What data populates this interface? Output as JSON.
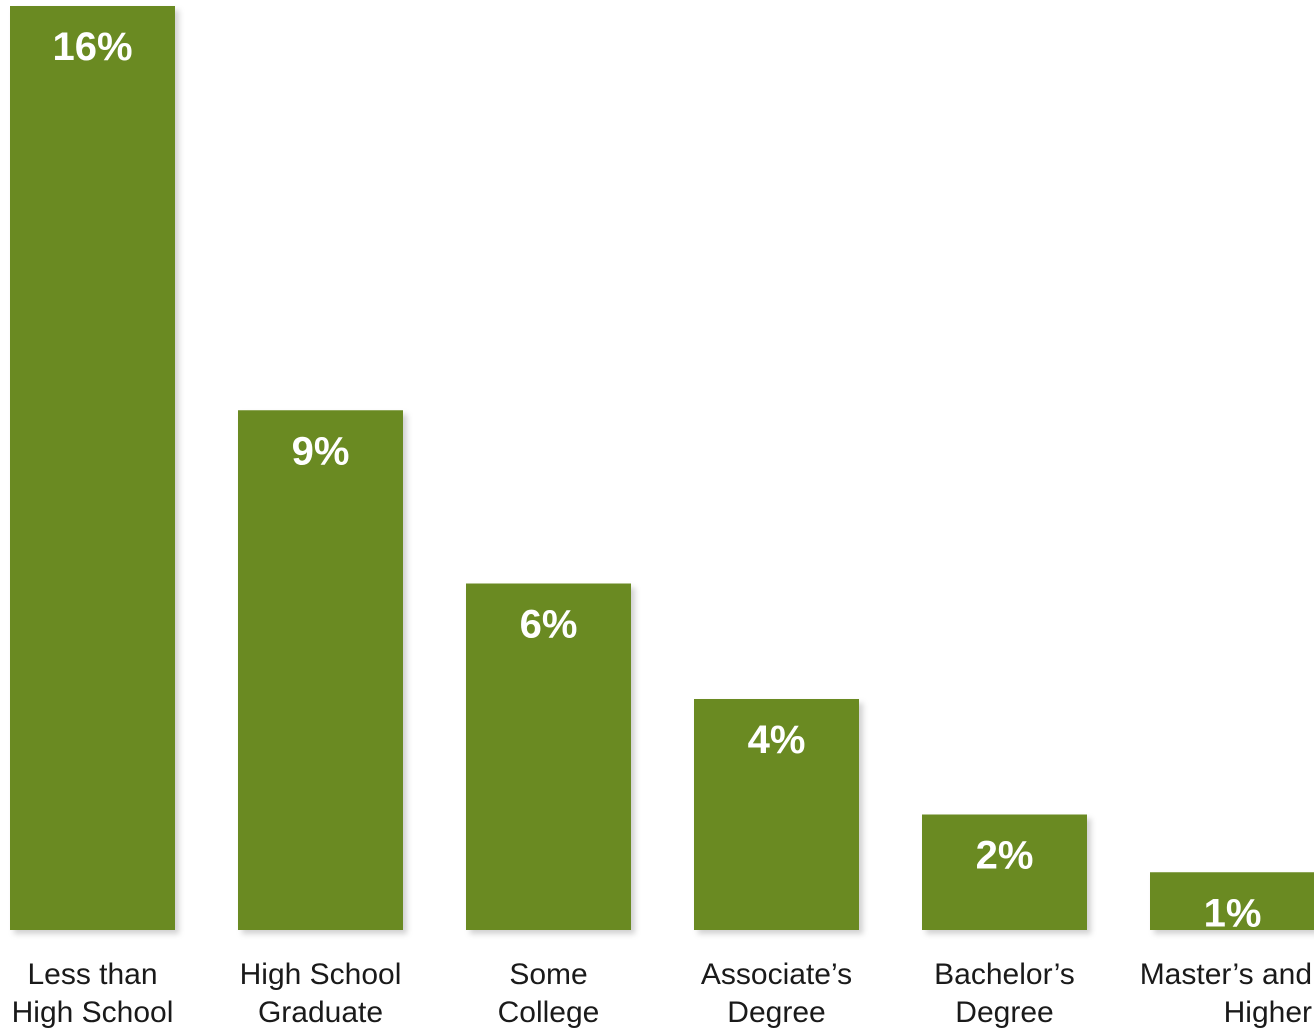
{
  "chart_data": {
    "type": "bar",
    "categories": [
      [
        "Less than",
        "High School"
      ],
      [
        "High School",
        "Graduate"
      ],
      [
        "Some",
        "College"
      ],
      [
        "Associate’s",
        "Degree"
      ],
      [
        "Bachelor’s",
        "Degree"
      ],
      [
        "Master’s and",
        "Higher"
      ]
    ],
    "values": [
      16,
      9,
      6,
      4,
      2,
      1
    ],
    "value_labels": [
      "16%",
      "9%",
      "6%",
      "4%",
      "2%",
      "1%"
    ],
    "ylim": [
      0,
      16
    ],
    "grid": false,
    "bar_color": "#6b8a23",
    "shadow_color": "#d8d8d8"
  }
}
